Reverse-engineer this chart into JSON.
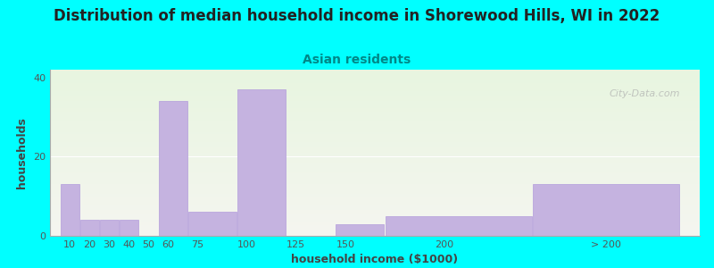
{
  "title": "Distribution of median household income in Shorewood Hills, WI in 2022",
  "subtitle": "Asian residents",
  "xlabel": "household income ($1000)",
  "ylabel": "households",
  "background_fig": "#00FFFF",
  "background_ax_gradient_top": "#e8f5e0",
  "background_ax_gradient_bottom": "#f5f5f0",
  "bar_color": "#c5b3e0",
  "bar_edge_color": "#b39ddb",
  "yticks": [
    0,
    20,
    40
  ],
  "ylim": [
    0,
    42
  ],
  "values": [
    13,
    4,
    4,
    4,
    0,
    34,
    6,
    37,
    0,
    3,
    5,
    13
  ],
  "bar_lefts": [
    5,
    15,
    25,
    35,
    45,
    55,
    70,
    95,
    120,
    145,
    170,
    245
  ],
  "bar_widths": [
    10,
    10,
    10,
    10,
    10,
    15,
    25,
    25,
    25,
    25,
    75,
    75
  ],
  "xlim": [
    0,
    330
  ],
  "xtick_positions": [
    10,
    20,
    30,
    40,
    50,
    60,
    75,
    100,
    125,
    150,
    200,
    282.5
  ],
  "xtick_labels": [
    "10",
    "20",
    "30",
    "40",
    "50",
    "60",
    "75",
    "100",
    "125",
    "150",
    "200",
    "> 200"
  ],
  "title_fontsize": 12,
  "subtitle_fontsize": 10,
  "axis_label_fontsize": 9,
  "tick_fontsize": 8,
  "watermark": "City-Data.com"
}
